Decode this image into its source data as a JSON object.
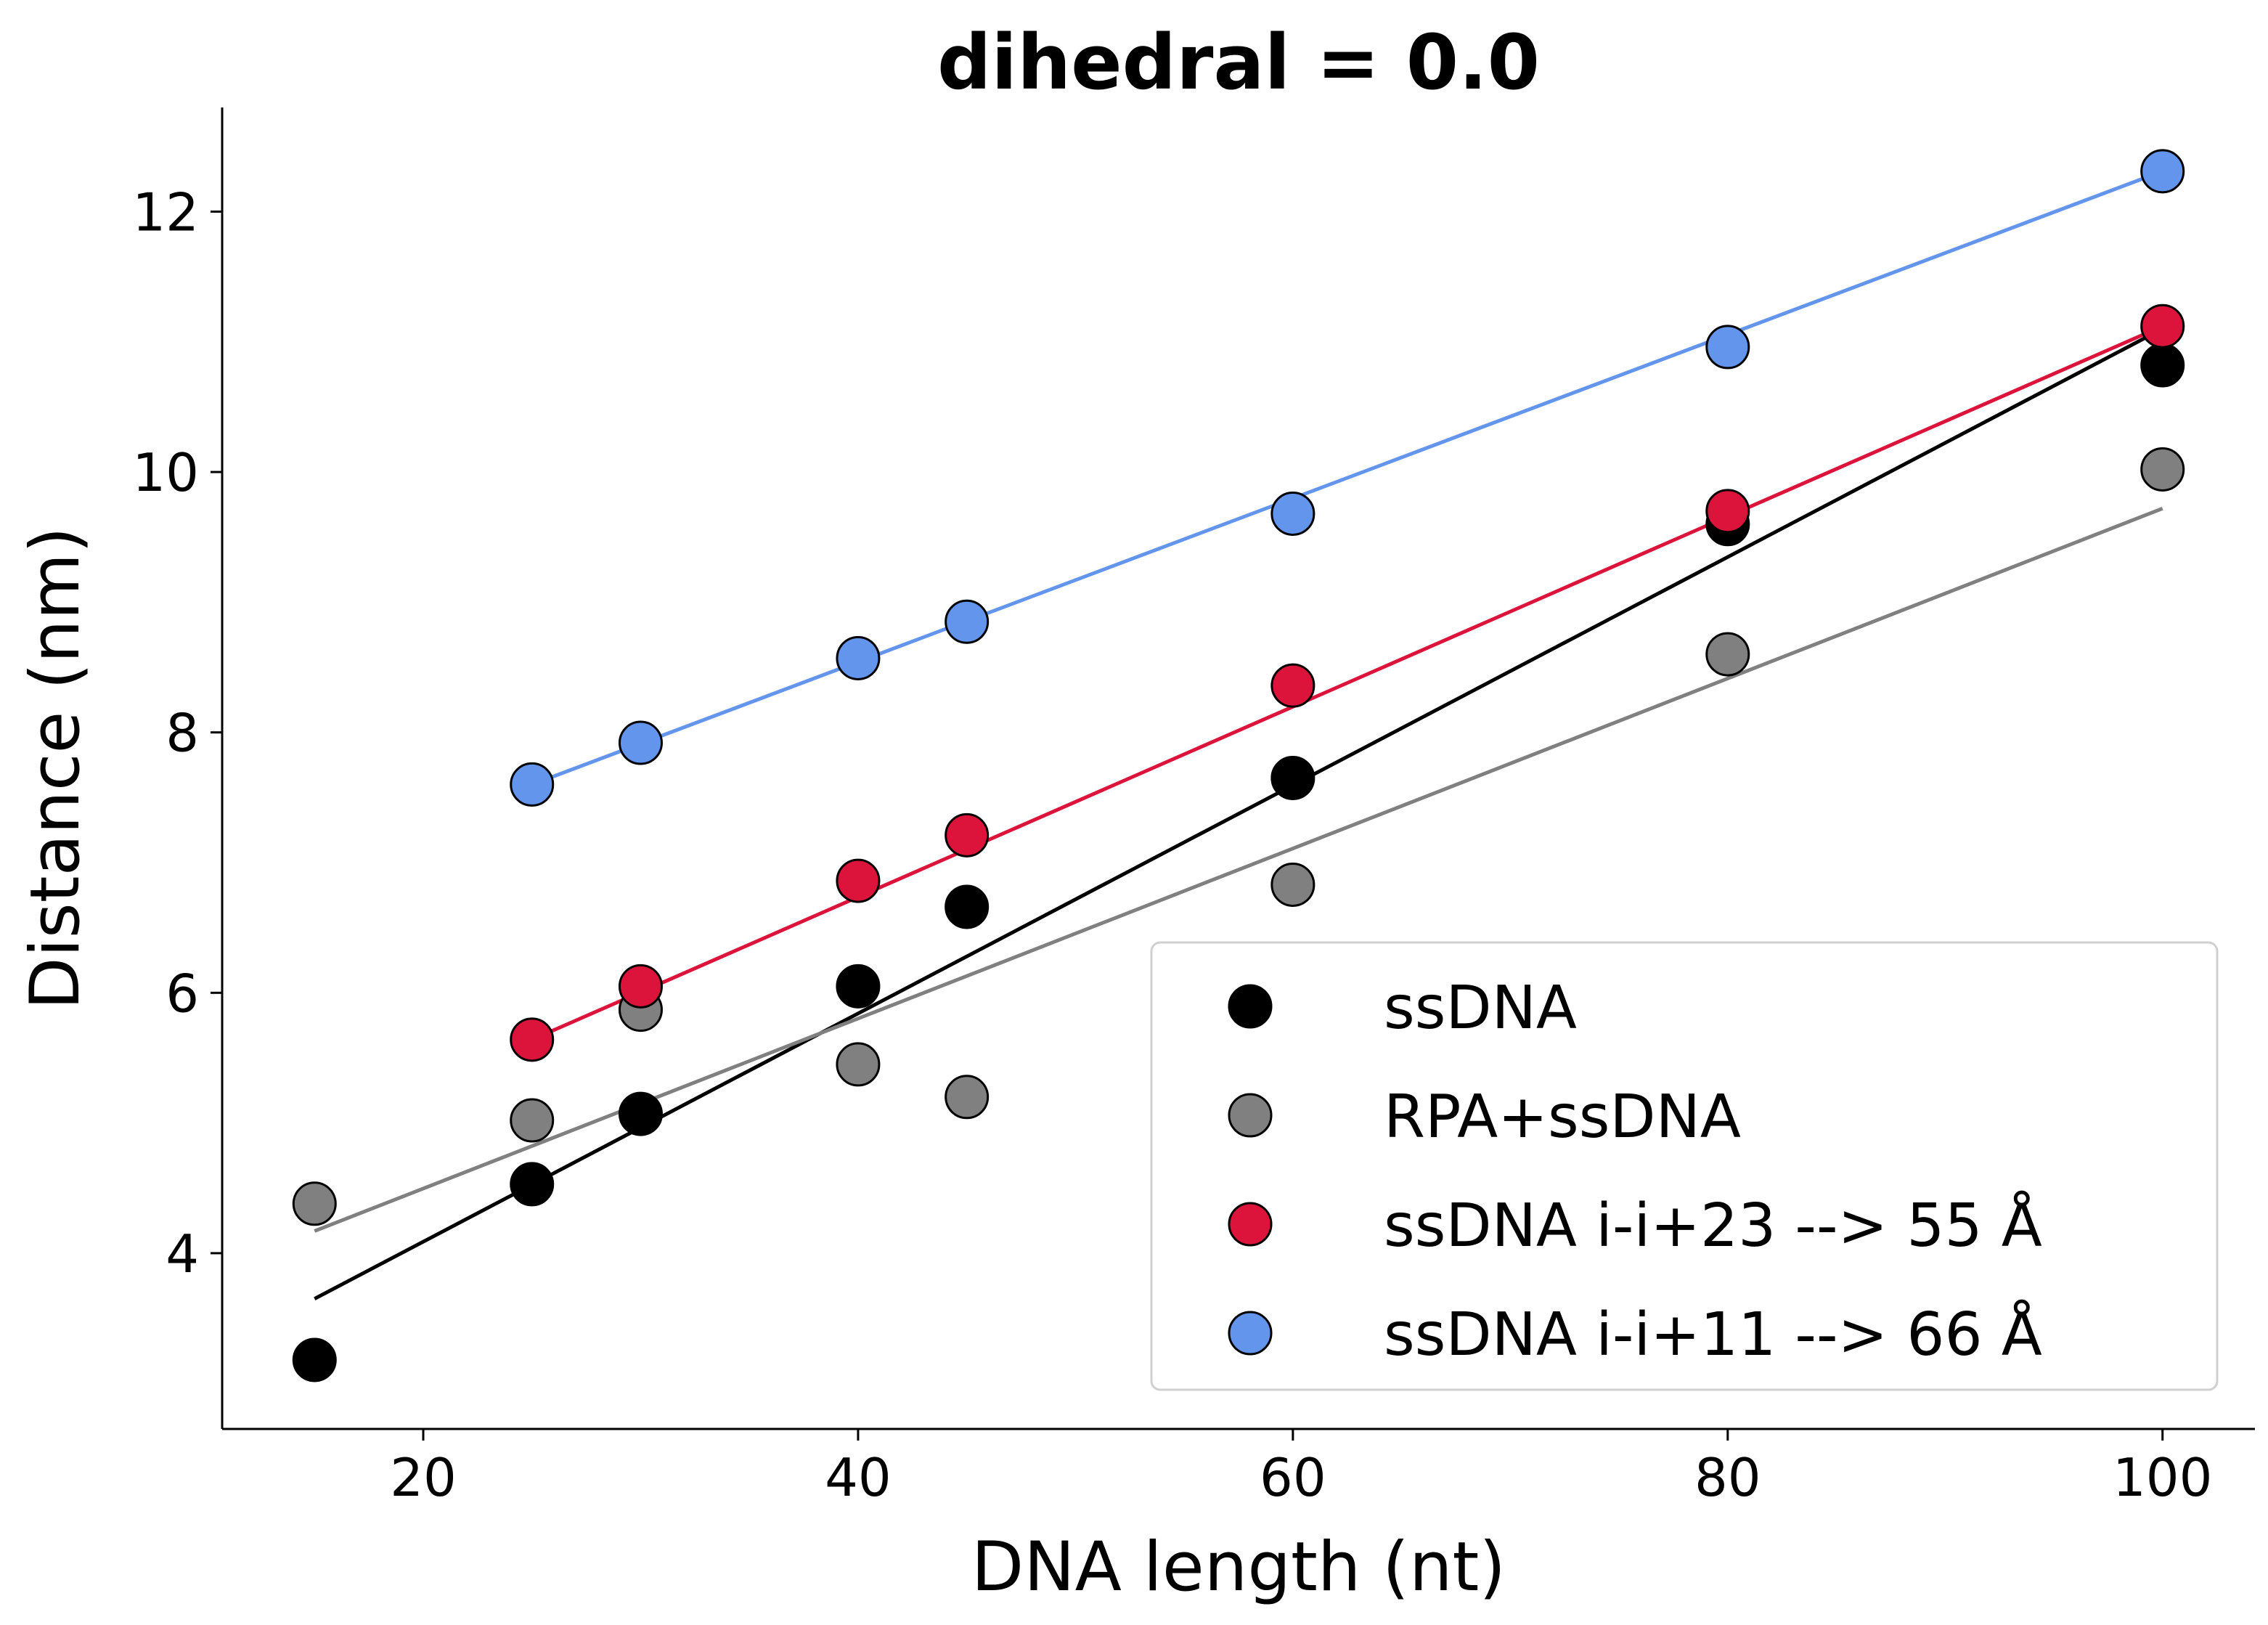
{
  "chart_data": {
    "type": "scatter",
    "title": "dihedral = 0.0",
    "xlabel": "DNA length (nt)",
    "ylabel": "Distance (nm)",
    "xlim": [
      10.75,
      104.25
    ],
    "ylim": [
      2.65,
      12.8
    ],
    "xticks": [
      20,
      40,
      60,
      80,
      100
    ],
    "yticks": [
      4,
      6,
      8,
      10,
      12
    ],
    "grid": false,
    "legend_position": "lower-right",
    "series": [
      {
        "name": "ssDNA",
        "color": "#000000",
        "x": [
          15,
          25,
          30,
          40,
          45,
          60,
          80,
          100
        ],
        "y": [
          3.18,
          4.53,
          5.07,
          6.05,
          6.66,
          7.65,
          9.6,
          10.82
        ],
        "fit": {
          "x": [
            15,
            100
          ],
          "y": [
            3.65,
            11.1
          ]
        }
      },
      {
        "name": "RPA+ssDNA",
        "color": "#808080",
        "x": [
          15,
          25,
          30,
          40,
          45,
          60,
          80,
          100
        ],
        "y": [
          4.38,
          5.02,
          5.87,
          5.45,
          5.2,
          6.83,
          8.6,
          10.02
        ],
        "fit": {
          "x": [
            15,
            100
          ],
          "y": [
            4.17,
            9.72
          ]
        }
      },
      {
        "name": "ssDNA i-i+23 --> 55 Å",
        "color": "#dc143c",
        "x": [
          25,
          30,
          40,
          45,
          60,
          80,
          100
        ],
        "y": [
          5.64,
          6.05,
          6.86,
          7.21,
          8.36,
          9.7,
          11.12
        ],
        "fit": {
          "x": [
            25,
            100
          ],
          "y": [
            5.64,
            11.12
          ]
        }
      },
      {
        "name": "ssDNA i-i+11 --> 66 Å",
        "color": "#6495ed",
        "x": [
          25,
          30,
          40,
          45,
          60,
          80,
          100
        ],
        "y": [
          7.6,
          7.92,
          8.57,
          8.85,
          9.68,
          10.96,
          12.31
        ],
        "fit": {
          "x": [
            25,
            100
          ],
          "y": [
            7.6,
            12.31
          ]
        }
      }
    ]
  }
}
